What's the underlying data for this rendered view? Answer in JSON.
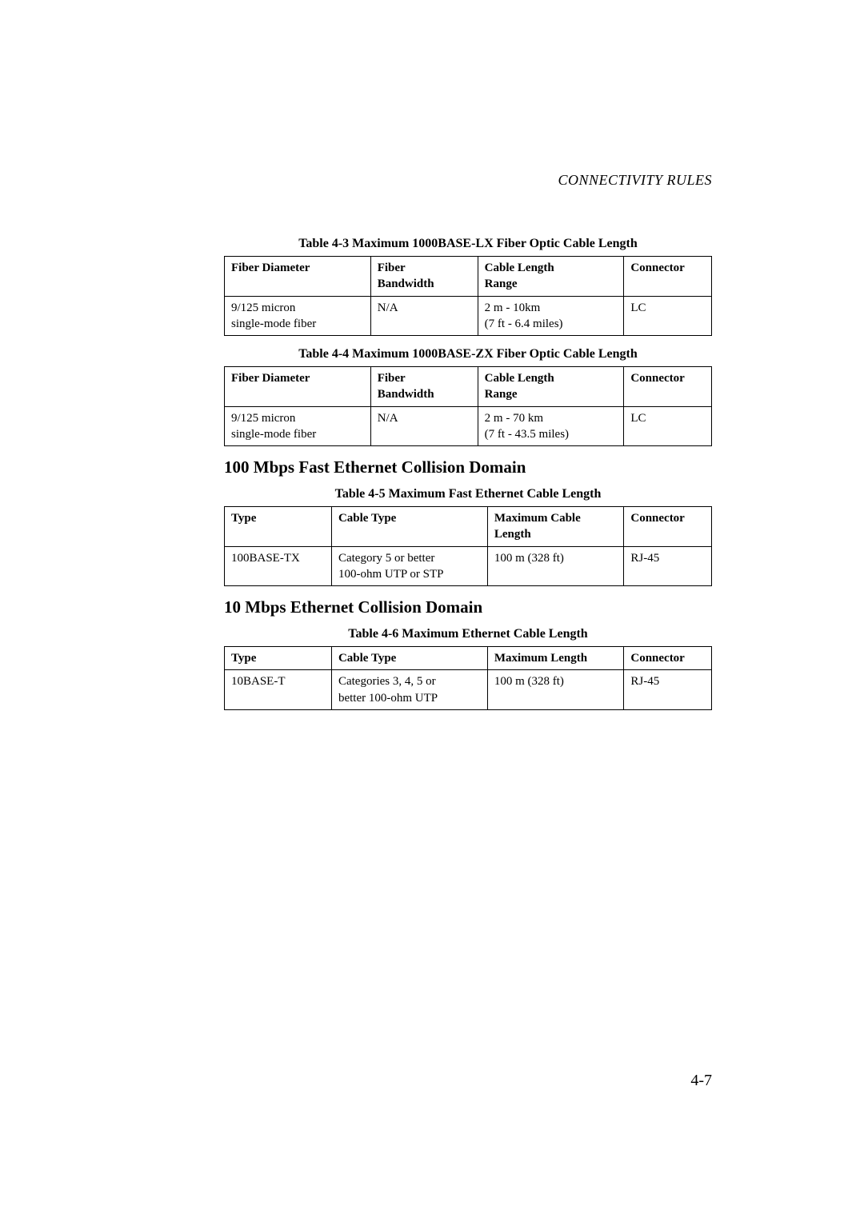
{
  "header": {
    "running_title": "CONNECTIVITY RULES"
  },
  "table43": {
    "caption": "Table 4-3  Maximum 1000BASE-LX Fiber Optic Cable Length",
    "headers": {
      "c1": "Fiber Diameter",
      "c2a": "Fiber",
      "c2b": "Bandwidth",
      "c3a": "Cable Length",
      "c3b": "Range",
      "c4": "Connector"
    },
    "row": {
      "c1a": "9/125 micron",
      "c1b": "single-mode fiber",
      "c2": "N/A",
      "c3a": "2 m - 10km",
      "c3b": "(7 ft - 6.4 miles)",
      "c4": "LC"
    }
  },
  "table44": {
    "caption": "Table 4-4  Maximum 1000BASE-ZX Fiber Optic Cable Length",
    "headers": {
      "c1": "Fiber Diameter",
      "c2a": "Fiber",
      "c2b": "Bandwidth",
      "c3a": "Cable Length",
      "c3b": "Range",
      "c4": "Connector"
    },
    "row": {
      "c1a": "9/125 micron",
      "c1b": "single-mode fiber",
      "c2": "N/A",
      "c3a": "2 m - 70 km",
      "c3b": "(7 ft - 43.5 miles)",
      "c4": "LC"
    }
  },
  "section100": {
    "heading": "100 Mbps Fast Ethernet Collision Domain"
  },
  "table45": {
    "caption": "Table 4-5  Maximum Fast Ethernet Cable Length",
    "headers": {
      "c1": "Type",
      "c2": "Cable Type",
      "c3a": "Maximum Cable",
      "c3b": "Length",
      "c4": "Connector"
    },
    "row": {
      "c1": "100BASE-TX",
      "c2a": "Category 5 or better",
      "c2b": "100-ohm UTP or STP",
      "c3": "100 m (328 ft)",
      "c4": "RJ-45"
    }
  },
  "section10": {
    "heading": "10 Mbps Ethernet Collision Domain"
  },
  "table46": {
    "caption": "Table 4-6  Maximum Ethernet Cable Length",
    "headers": {
      "c1": "Type",
      "c2": "Cable Type",
      "c3": "Maximum Length",
      "c4": "Connector"
    },
    "row": {
      "c1": "10BASE-T",
      "c2a": "Categories 3, 4, 5 or",
      "c2b": "better 100-ohm UTP",
      "c3": "100 m (328 ft)",
      "c4": "RJ-45"
    }
  },
  "footer": {
    "page": "4-7"
  }
}
